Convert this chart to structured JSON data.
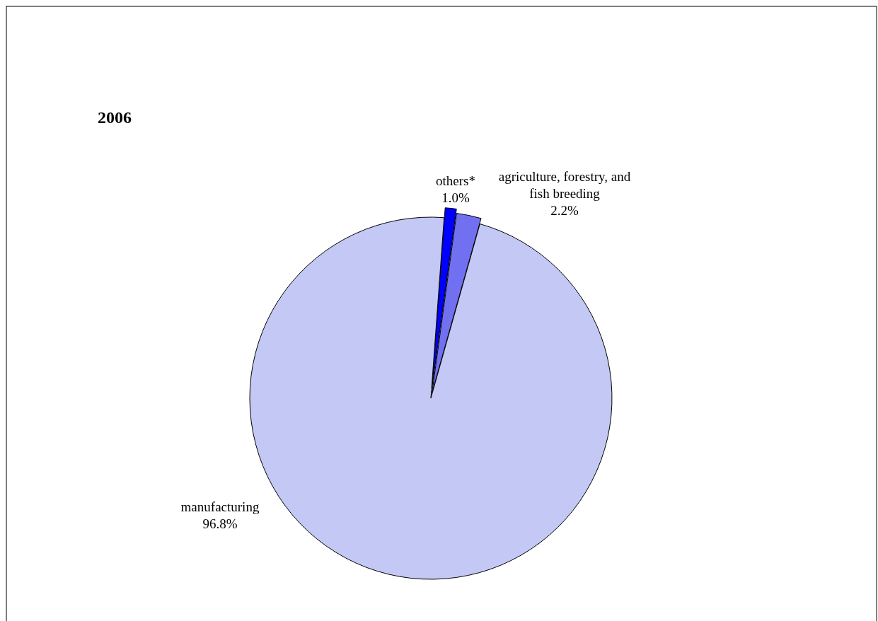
{
  "chart_data": {
    "type": "pie",
    "title": "2006",
    "categories": [
      "others*",
      "agriculture, forestry, and fish breeding",
      "manufacturing"
    ],
    "values": [
      1.0,
      2.2,
      96.8
    ],
    "value_labels": [
      "1.0%",
      "2.2%",
      "96.8%"
    ],
    "colors": [
      "#0000ff",
      "#7070f0",
      "#c4c8f4"
    ]
  }
}
